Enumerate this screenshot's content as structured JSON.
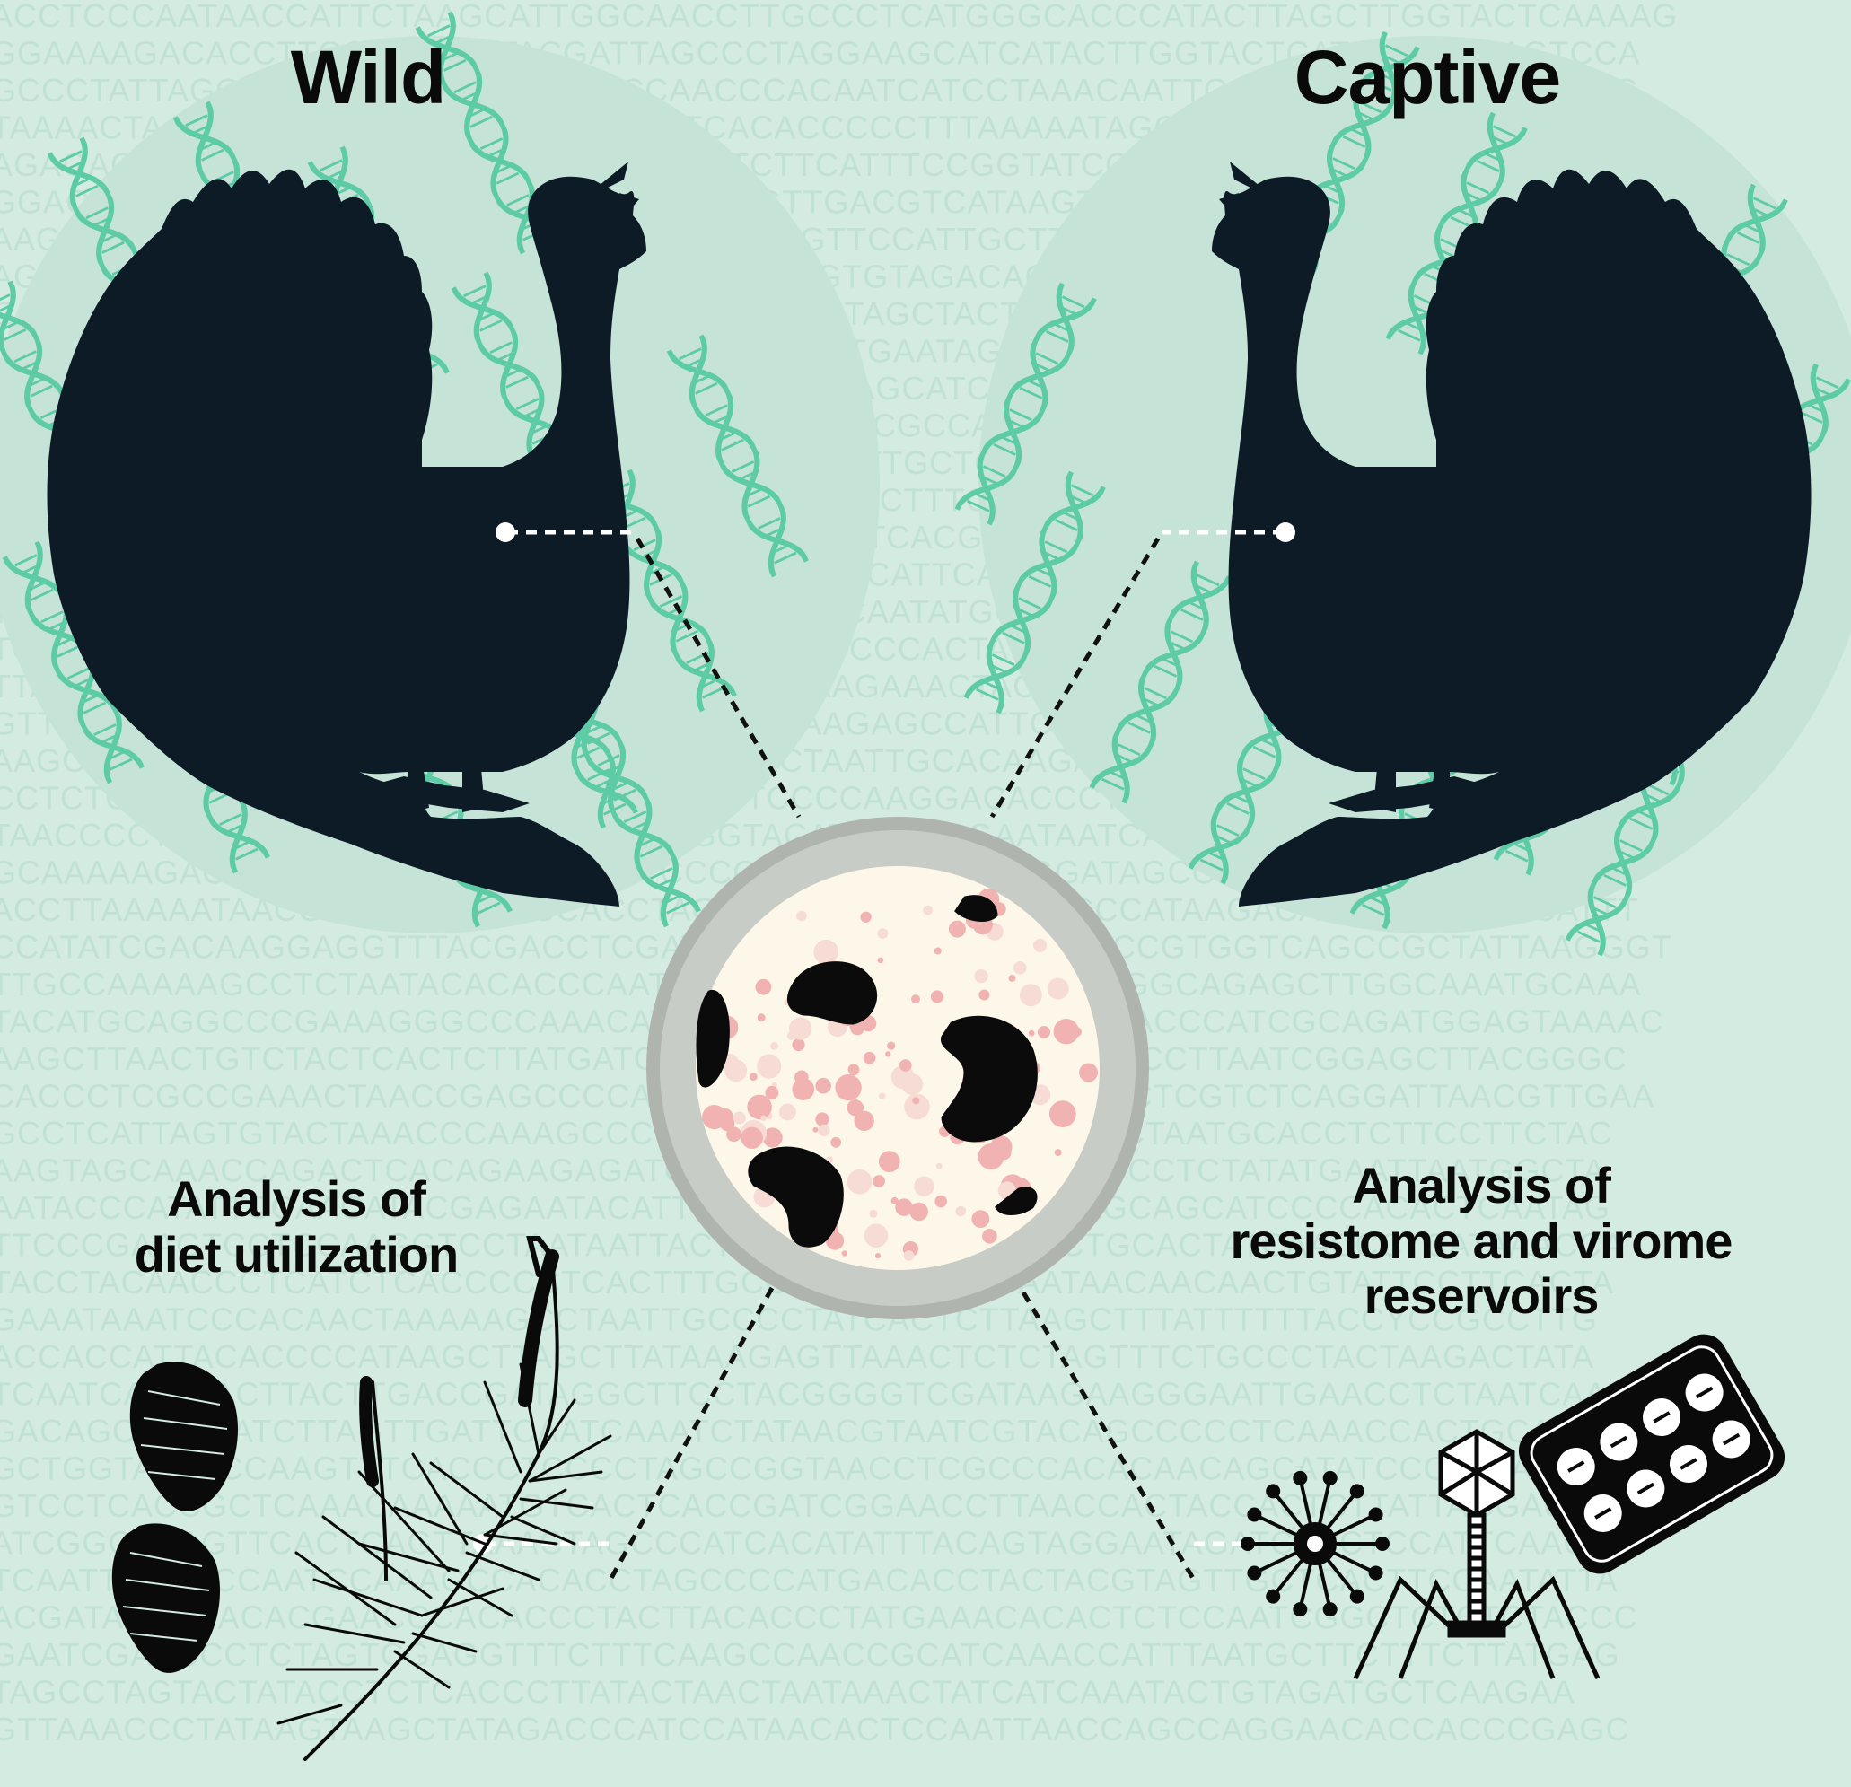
{
  "panels": {
    "wild": {
      "title": "Wild"
    },
    "captive": {
      "title": "Captive"
    }
  },
  "analyses": {
    "diet": {
      "line1": "Analysis of",
      "line2": "diet utilization"
    },
    "resistome": {
      "line1": "Analysis of",
      "line2": "resistome and virome",
      "line3": "reservoirs"
    }
  },
  "background": {
    "sequence_rows": [
      "ACCTCCCAATAACCATTCTAAGCATTGGCAACCTTGCCCTCATGGGCACCCATACTTAGCTTGGTACTCAAAAG",
      "GGAAAAGACACCTTCCCAATCATACGATTAGCCCTAGGAAGCATCATACTTGGTACTCATCCCTTATAGTCCA",
      "GCCCTATTAGGCTACTAACCCATCGAATCCAACCCACAATCATCCTAAACAATTGCTTCACACTTAGCAACTC",
      "TAAAACTAAAAATAATGCACCCCATCCGAAATCACACCCCCTTTAAAAATAGCAACAATCCCTAATTCGCCTC",
      "AGAGACTACGATCCCAAACGGCGCTTCATTCTTCTTCATTTCCGGTATCGTGACCGATTTGTAGCGATCAAC",
      "GGACAGCATTAGTTAGCCTGAGGCGGATTCTCAGTTGACGTCATAAGTACAGTGATAGCAGGGTTATCCTAT",
      "AAGCCTTATTACGGCTATTCTCGCCCAACTTCATAGGTTCCATTGCTTGTAAACCAGCTAGCGAAACATGAC",
      "AGCTGGTCCACAAATCTGTTTTGACTTCTTCTGGGAGTGTAGACACTCTTTGGTTCCATCACTGGTACTTAC",
      "GGTATGGTATTCTTCTTGCAGTATCTCAGAAATCAGGATAGCTACTTCAGTTATAAGCCAGTGGAGGAATCC",
      "GTTCAAAGACACCCCCACCATCCACGTACCTCATCAGTGAATAGCACTAGCCTCTAGCCAAAGTAGATATCT",
      "AGCAAAGAGTCACCCACCCTATAGACGGGCACAGTCTAGCATCAGCATAGCTAACAGGTATCAGTGGGTAGT",
      "TACAAGCCAACATCTCCCCCCTTCCCTCCCGGCCGAATCGCCAAACGCTCCCCAAGCGTACCCCTTCGGTCT",
      "TCCATGCTACAAAATACTTCTAGTTTGCATCAGCATCTGTTGCTCACATGGCCGCTTAGATCACCATAAACA",
      "ACGTACGCCCCCTTCATTAATTTGTCCGAATTGGTCGTGCTTTCGCCCAATCCAGATACGTCACTAGAGGGA",
      "TGACTTGGGTTATGAACTGACATGTCATATTGTTCAAGATCACGCTTGACCAGCCTTGTCATACGCCAACCA",
      "GCTTAAAAACCAAGATTACTTGACATTGAGGCGGGTGCCATTCACTAGAGGAAAAACGGGCATAAAAAGAGG",
      "TAGACTATATCCCACATCAGACTACAAGAAACCCCATTCAATATGCTGGCTACAGGAACAGCATACCCCTAA",
      "TCCATGTTTCAATCATAGGACTCATAGAGCACAAGTGTCCCACTACAATTACAAGATACAGAAGATAAAGAC",
      "TTAACGCAGTGGCCCATATATTTAATAGAATAGAACAAAGAAACTACTACCCCCTAGATACCACACCCCTAC",
      "GTTGCCAAAGTAGCACTGCAATAAAGTATAAATCTCAAGAGCCATTCACCAGTGCCCTAGATACAATTCAACA",
      "AAGCTCCTATAGGCAAAAGCTGAACCCCAAACCCCTAATTGCACAAGAGCTTTGAGTCTGGGAACTAAAGAC",
      "CCTCTCCAATAACTTTCGAGATTCTTCATCTCATTCCCCAAGGACACCCTTACTTTCCTACTATCCCTTACT",
      "TAACCCCTGGGCTTCCCTGTCTATACAATTCGGTACATGCCAAGAATAATCAGTACGCCAGGGCGTAACCGA",
      "GCAAAAAGACATACCCGTGGATCAAGCTTCCCCAAGTAGTAAGAAGGATAGCCGGTGACTTCCTTCCGGTA",
      "ACCTTAAAAATAACGACCACTCCTCCACCTAGACCTGCAAACAAGGACCCATAAGACACTTGGTCGACATTT",
      "CCATATCGACAAGGAGGTTTACGACCTCGATCAACCACACGCCGGCAGCCGTGGTCAGCCGCTATTAAGGGT",
      "TTGCCAAAAAGCCTCTAATACACACCCAATTCGCTCAGAATTATCCCCGTGGCAGAGCTTGGCAAATGCAAA",
      "TACATGCAGGCCCGAAAGGGCCCAAACATTGTCTGTCATCACACCCCCAACCCATCGCAGATGGAGTAAAAC",
      "AAGCTTAACTGTCTACTCACTCTTATGATCAGTCTCATGACAGCCAATACGCCTTAATCGGAGCTTACGGGC",
      "CACCCTCGCCGAAACTAACCGAGCCCCATTGAGGGATACCTCCATTGAACTCGTCTCAGGATTAACGTTGAA",
      "GCCTCATTAGTGTACTAAACCCAAAGCCCTCATATCCAACAAACAATGAACTAATGCACCTCTTCCTTCTAC",
      "AAGTAGCAAACCAGACTCACAGAAGAGATCAATTAACAACCCTTAATTCCCCTCTATATGAATTAATGGCTA",
      "AATACCCATATTCCAACATACGAGAATACATTGTCCCTAGCCTCAATTCAGCAGCATCCCCACACTCAATAG",
      "TTCCCGAAGTCCTCCAAGGTCCTAATAATTACTGACACCTCAACCCTCTGCACTATCAACCCTCATAAACCA",
      "TACCTACAACCCTCATCTCACCCCCTCACTTTGCCCTCTACACAGAATAACAACAACTGTATTCCTTCACTA",
      "GAAATAAATCCCACAACTAAAAAGCCTAATTGCCCCTATCACTCTTAAGCTTTATTTTTTACCYCCGCCTTG",
      "ACCACCATTACACCCCATAAGCTTAGCTTATAAAGAGTTAAACTCTCTAGTTTCTGCCCTACTAAGACTATA",
      "TCAATCAAAAACTTACTTGACCGATAGGCTTCCTACGGGGTCGATAAGAAGGGAATTGAACCTCTAATCAAA",
      "GACAGCCCCAATCTTAGTTGATTCAATCAAATCTATAACGTAATCGTACAGCCCCCTCAAACCACTGCAATC",
      "GCTGGTAATCCCAAGTTTCACCCTCCCCTAGCCGGTAACCTCGCCCACACAACAGCATATCCCTCTATACTA",
      "GTCCTCACCGCTCAAACAAAAATGTCACTCACCGATCGGAACCTTAACCACTACCACTCTTATTAGGAGGAC",
      "ATCGGCACAGTTCACTCAGTTAAACTAGCCCATCACATATTTACAGTAGGAATAGATCTCCTCCATTCAAGA",
      "TCAATTCCCTCCAATCCAAAGCCACACCTAGCCCCATGACACCTACTACGTAGTTGCTCACTTCCAATATTA",
      "ACGATACCTCACACGAACCCACACCCTACTTACACCCTATGAAACACACTCTCCAATCGGCTCTCTCTACCC",
      "GAATCGAACCCTCTAGTCGAGGTTTCTTTCAAGCCAACCGCATCAAACCATTTAATGCTTCTTTCTTATGAG",
      "TAGCCTAGTACTATACCTCTCACCCTTATACTAACTAATAAACTATCATCAAATACTGTAGATGCTCAAGAA",
      "GTTAAACCCTATAAGTAAGCTATAGACCCATCCATAACACTCCAATTAACCAGCCAGGAACACCACCCGAGC"
    ]
  }
}
